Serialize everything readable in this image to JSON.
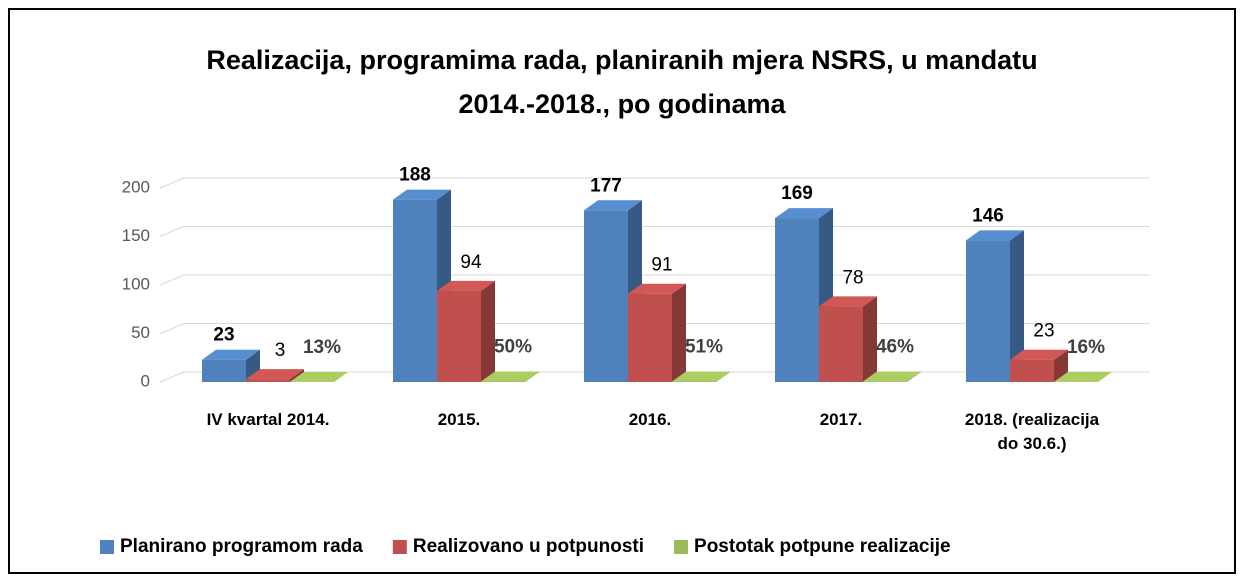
{
  "chart_data": {
    "type": "bar3d",
    "title": "Realizacija, programima rada, planiranih mjera NSRS, u mandatu 2014.-2018., po godinama",
    "categories": [
      "IV kvartal 2014.",
      "2015.",
      "2016.",
      "2017.",
      "2018. (realizacija do 30.6.)"
    ],
    "series": [
      {
        "name": "Planirano programom rada",
        "color": "#4f81bd",
        "values": [
          23,
          188,
          177,
          169,
          146
        ]
      },
      {
        "name": "Realizovano u potpunosti",
        "color": "#c0504d",
        "values": [
          3,
          94,
          91,
          78,
          23
        ]
      },
      {
        "name": "Postotak potpune realizacije",
        "color": "#9bbb59",
        "values": [
          0.13,
          0.5,
          0.51,
          0.46,
          0.16
        ],
        "value_labels": [
          "13%",
          "50%",
          "51%",
          "46%",
          "16%"
        ]
      }
    ],
    "ylim": [
      0,
      200
    ],
    "yticks": [
      0,
      50,
      100,
      150,
      200
    ],
    "grid": true,
    "legend": "bottom"
  }
}
